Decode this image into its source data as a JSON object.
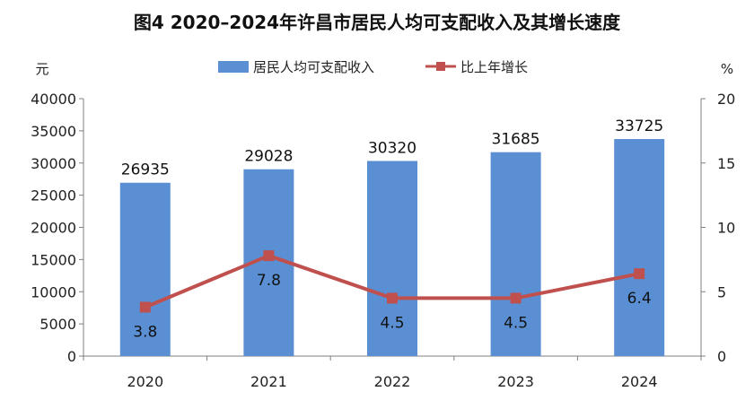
{
  "chart_data": {
    "type": "bar",
    "title": "图4   2020–2024年许昌市居民人均可支配收入及其增长速度",
    "categories": [
      "2020",
      "2021",
      "2022",
      "2023",
      "2024"
    ],
    "series": [
      {
        "name": "居民人均可支配收入",
        "type": "bar",
        "axis": "left",
        "color": "#5B8FD4",
        "values": [
          26935,
          29028,
          30320,
          31685,
          33725
        ],
        "labels": [
          "26935",
          "29028",
          "30320",
          "31685",
          "33725"
        ]
      },
      {
        "name": "比上年增长",
        "type": "line",
        "axis": "right",
        "color": "#C0504D",
        "values": [
          3.8,
          7.8,
          4.5,
          4.5,
          6.4
        ],
        "labels": [
          "3.8",
          "7.8",
          "4.5",
          "4.5",
          "6.4"
        ]
      }
    ],
    "ylabel": "元",
    "y2label": "%",
    "ylim": [
      0,
      40000
    ],
    "y2lim": [
      0,
      20
    ],
    "yticks": [
      "0",
      "5000",
      "10000",
      "15000",
      "20000",
      "25000",
      "30000",
      "35000",
      "40000"
    ],
    "y2ticks": [
      "0",
      "5",
      "10",
      "15",
      "20"
    ],
    "legend_position": "top-center",
    "grid": false
  }
}
